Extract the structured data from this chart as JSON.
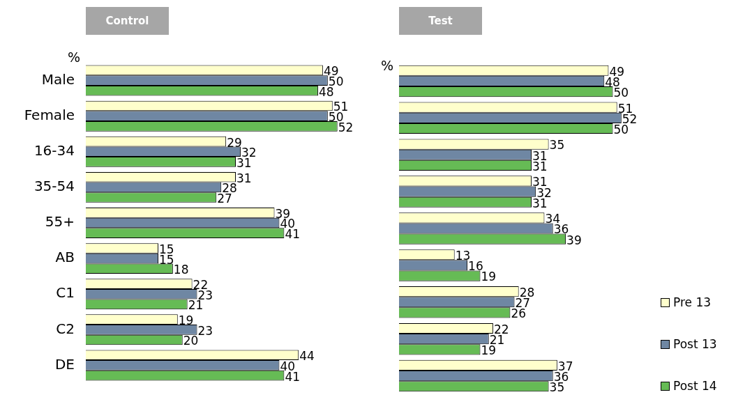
{
  "chart_data": [
    {
      "type": "bar",
      "orientation": "horizontal",
      "title": "Control",
      "ylabel": "%",
      "categories": [
        "Male",
        "Female",
        "16-34",
        "35-54",
        "55+",
        "AB",
        "C1",
        "C2",
        "DE"
      ],
      "data_labels": true,
      "tick_labels": "y",
      "series": [
        {
          "color": "#ffffcc",
          "values": [
            49,
            51,
            29,
            31,
            39,
            15,
            22,
            19,
            44
          ]
        },
        {
          "color": "#6f87a3",
          "values": [
            50,
            50,
            32,
            28,
            40,
            15,
            23,
            23,
            40
          ]
        },
        {
          "color": "#66bb55",
          "values": [
            48,
            52,
            31,
            27,
            41,
            18,
            21,
            20,
            41
          ]
        }
      ]
    },
    {
      "type": "bar",
      "orientation": "horizontal",
      "title": "Test",
      "ylabel": "%",
      "categories": [
        null,
        null,
        null,
        null,
        null,
        null,
        null,
        null,
        null
      ],
      "data_labels": true,
      "tick_labels": false,
      "legend": "bottom right",
      "series": [
        {
          "name": "Pre 13",
          "color": "#ffffcc",
          "values": [
            49,
            51,
            35,
            31,
            34,
            13,
            28,
            22,
            37
          ]
        },
        {
          "name": "Post 13",
          "color": "#6f87a3",
          "values": [
            48,
            52,
            31,
            32,
            36,
            16,
            27,
            21,
            36
          ]
        },
        {
          "name": "Post 14",
          "color": "#66bb55",
          "values": [
            50,
            50,
            31,
            31,
            39,
            19,
            26,
            19,
            35
          ]
        }
      ]
    }
  ]
}
